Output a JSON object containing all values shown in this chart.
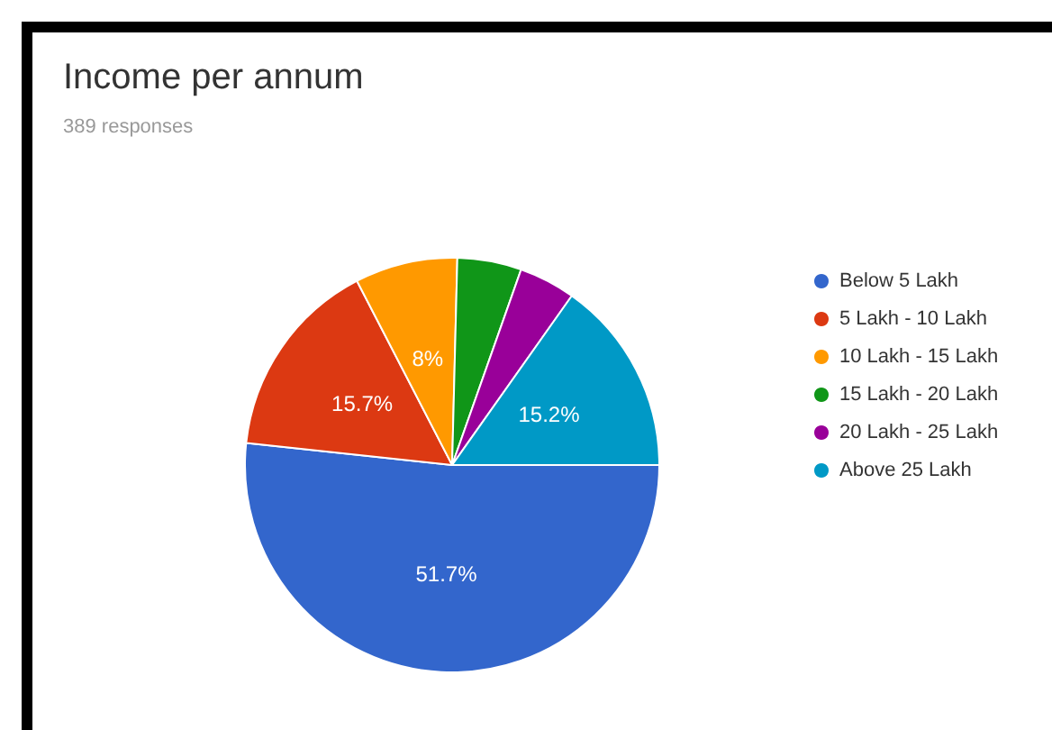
{
  "chart_data": {
    "type": "pie",
    "title": "Income per annum",
    "subtitle": "389 responses",
    "categories": [
      "Below 5 Lakh",
      "5 Lakh - 10 Lakh",
      "10 Lakh - 15 Lakh",
      "15 Lakh - 20 Lakh",
      "20 Lakh - 25 Lakh",
      "Above 25 Lakh"
    ],
    "values": [
      51.7,
      15.7,
      8,
      5,
      4.4,
      15.2
    ],
    "colors": [
      "#3366cc",
      "#dc3912",
      "#ff9900",
      "#109618",
      "#990099",
      "#0099c6"
    ],
    "value_labels": [
      "51.7%",
      "15.7%",
      "8%",
      null,
      null,
      "15.2%"
    ],
    "legend": "right"
  }
}
